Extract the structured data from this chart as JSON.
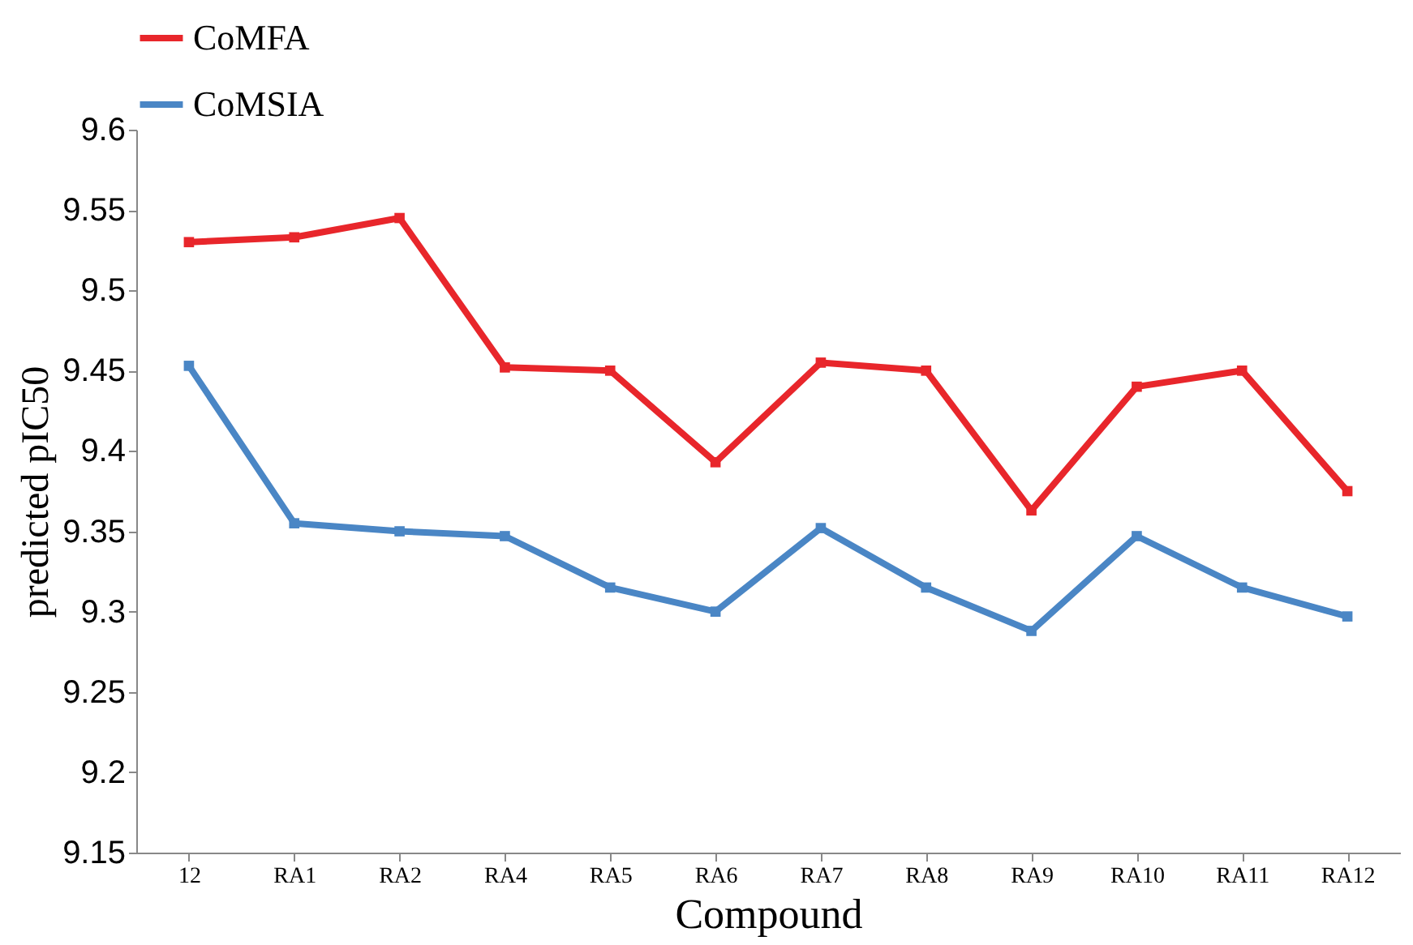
{
  "chart_data": {
    "type": "line",
    "xlabel": "Compound",
    "ylabel": "predicted  pIC50",
    "categories": [
      "12",
      "RA1",
      "RA2",
      "RA4",
      "RA5",
      "RA6",
      "RA7",
      "RA8",
      "RA9",
      "RA10",
      "RA11",
      "RA12"
    ],
    "series": [
      {
        "name": "CoMFA",
        "color": "#e8262b",
        "values": [
          9.53,
          9.533,
          9.545,
          9.452,
          9.45,
          9.393,
          9.455,
          9.45,
          9.363,
          9.44,
          9.45,
          9.375
        ]
      },
      {
        "name": "CoMSIA",
        "color": "#4a86c5",
        "values": [
          9.453,
          9.355,
          9.35,
          9.347,
          9.315,
          9.3,
          9.352,
          9.315,
          9.288,
          9.347,
          9.315,
          9.297
        ]
      }
    ],
    "ylim": [
      9.15,
      9.6
    ],
    "yticks": [
      9.15,
      9.2,
      9.25,
      9.3,
      9.35,
      9.4,
      9.45,
      9.5,
      9.55,
      9.6
    ],
    "grid": false,
    "legend": "top",
    "marker": "square",
    "line_style": "solid"
  }
}
